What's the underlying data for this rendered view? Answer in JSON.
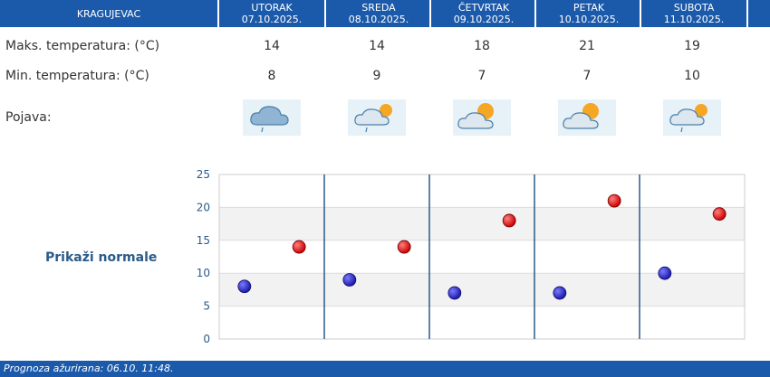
{
  "header": {
    "city": "KRAGUJEVAC",
    "days": [
      {
        "name": "UTORAK",
        "date": "07.10.2025."
      },
      {
        "name": "SREDA",
        "date": "08.10.2025."
      },
      {
        "name": "ČETVRTAK",
        "date": "09.10.2025."
      },
      {
        "name": "PETAK",
        "date": "10.10.2025."
      },
      {
        "name": "SUBOTA",
        "date": "11.10.2025."
      }
    ]
  },
  "rows": {
    "max_label": "Maks. temperatura: (°C)",
    "min_label": "Min. temperatura: (°C)",
    "phen_label": "Pojava:"
  },
  "max_temps": [
    "14",
    "14",
    "18",
    "21",
    "19"
  ],
  "min_temps": [
    "8",
    "9",
    "7",
    "7",
    "10"
  ],
  "phenomena_icons": [
    "cloud-rain-icon",
    "partly-cloudy-rain-icon",
    "partly-cloudy-icon",
    "partly-cloudy-icon",
    "partly-cloudy-rain-icon"
  ],
  "normals_link": "Prikaži normale",
  "footer": "Prognoza ažurirana:  06.10. 11:48.",
  "colors": {
    "header_bg": "#1b5aab",
    "max_marker": "#cc0000",
    "min_marker": "#1a1aa8",
    "axis": "#2b5a8a"
  },
  "chart_data": {
    "type": "scatter",
    "categories": [
      "UTORAK",
      "SREDA",
      "ČETVRTAK",
      "PETAK",
      "SUBOTA"
    ],
    "series": [
      {
        "values": [
          14,
          14,
          18,
          21,
          19
        ]
      },
      {
        "values": [
          8,
          9,
          7,
          7,
          10
        ]
      }
    ],
    "ylim": [
      0,
      25
    ],
    "yticks": [
      0,
      5,
      10,
      15,
      20,
      25
    ],
    "grid": true
  }
}
